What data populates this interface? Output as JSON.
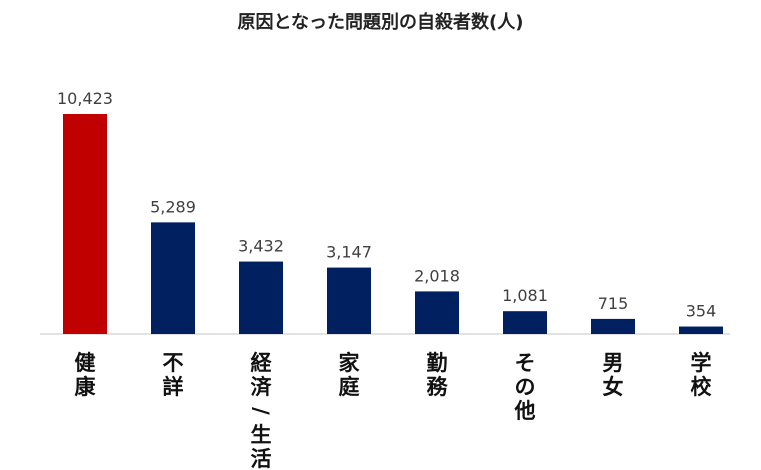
{
  "chart_data": {
    "type": "bar",
    "title": "原因となった問題別の自殺者数(人)",
    "categories": [
      "健康",
      "不詳",
      "経済/生活",
      "家庭",
      "勤務",
      "その他",
      "男女",
      "学校"
    ],
    "values": [
      10423,
      5289,
      3432,
      3147,
      2018,
      1081,
      715,
      354
    ],
    "value_labels": [
      "10,423",
      "5,289",
      "3,432",
      "3,147",
      "2,018",
      "1,081",
      "715",
      "354"
    ],
    "bar_colors": [
      "#c00000",
      "#002060",
      "#002060",
      "#002060",
      "#002060",
      "#002060",
      "#002060",
      "#002060"
    ],
    "xlabel": "",
    "ylabel": "",
    "ylim": [
      0,
      10423
    ],
    "grid": false,
    "legend": "none"
  }
}
